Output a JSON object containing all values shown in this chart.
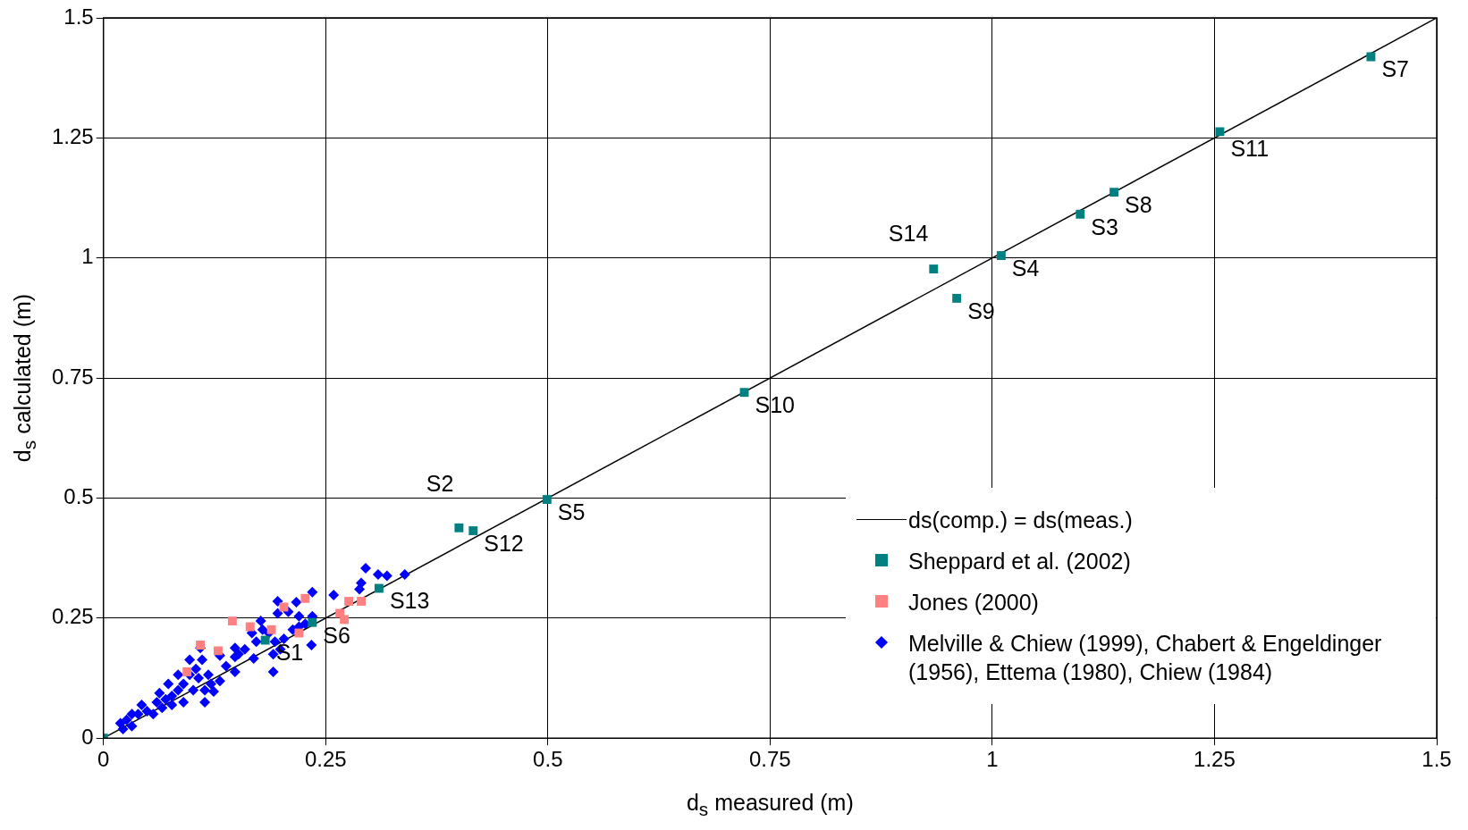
{
  "chart_data": {
    "type": "scatter",
    "xlabel": "d$_{s}$ measured (m)",
    "ylabel": "d$_{s}$ calculated (m)",
    "xlim": [
      0,
      1.5
    ],
    "ylim": [
      0,
      1.5
    ],
    "xticks": [
      0,
      0.25,
      0.5,
      0.75,
      1,
      1.25,
      1.5
    ],
    "yticks": [
      0,
      0.25,
      0.5,
      0.75,
      1,
      1.25,
      1.5
    ],
    "grid": true,
    "legend": "bottom right",
    "series": [
      {
        "name": "ds(comp.) = ds(meas.)",
        "type": "line",
        "color": "#000000",
        "marker": "none",
        "x": [
          0,
          1.5
        ],
        "values": [
          0,
          1.5
        ]
      },
      {
        "name": "Sheppard et al. (2002)",
        "color": "#008080",
        "marker": "square",
        "x": [
          0,
          0.182,
          0.235,
          0.31,
          0.4,
          0.416,
          0.499,
          0.721,
          0.934,
          0.96,
          1.01,
          1.099,
          1.137,
          1.256,
          1.426
        ],
        "values": [
          0,
          0.204,
          0.241,
          0.312,
          0.438,
          0.432,
          0.497,
          0.72,
          0.977,
          0.916,
          1.005,
          1.091,
          1.137,
          1.263,
          1.419
        ]
      },
      {
        "name": "Jones (2000)",
        "color": "#ff8080",
        "marker": "square",
        "x": [
          0.145,
          0.109,
          0.129,
          0.165,
          0.189,
          0.203,
          0.227,
          0.22,
          0.266,
          0.271,
          0.29,
          0.276,
          0.094
        ],
        "values": [
          0.244,
          0.194,
          0.182,
          0.232,
          0.226,
          0.273,
          0.291,
          0.219,
          0.26,
          0.247,
          0.285,
          0.285,
          0.138
        ]
      },
      {
        "name": "Melville & Chiew (1999), Chabert & Engeldinger (1956), Ettema (1980), Chiew (1984)",
        "color": "#0000ff",
        "marker": "diamond",
        "x": [
          0.295,
          0.309,
          0.319,
          0.339,
          0.29,
          0.288,
          0.259,
          0.235,
          0.217,
          0.196,
          0.196,
          0.208,
          0.22,
          0.235,
          0.22,
          0.234,
          0.177,
          0.167,
          0.186,
          0.193,
          0.199,
          0.191,
          0.191,
          0.169,
          0.159,
          0.148,
          0.148,
          0.148,
          0.131,
          0.131,
          0.124,
          0.114,
          0.109,
          0.111,
          0.104,
          0.097,
          0.09,
          0.084,
          0.073,
          0.07,
          0.066,
          0.06,
          0.049,
          0.043,
          0.032,
          0.026,
          0.019,
          0.022,
          0.032,
          0.039,
          0.077,
          0.09,
          0.101,
          0.107,
          0.118,
          0.097,
          0.172,
          0.179,
          0.213,
          0.227,
          0.203,
          0.152,
          0.138,
          0.121,
          0.084,
          0.056,
          0.063,
          0.077,
          0.114
        ],
        "values": [
          0.354,
          0.341,
          0.338,
          0.341,
          0.323,
          0.31,
          0.298,
          0.304,
          0.283,
          0.285,
          0.26,
          0.263,
          0.254,
          0.254,
          0.232,
          0.194,
          0.244,
          0.219,
          0.219,
          0.201,
          0.185,
          0.175,
          0.138,
          0.166,
          0.185,
          0.188,
          0.169,
          0.138,
          0.172,
          0.119,
          0.097,
          0.075,
          0.188,
          0.163,
          0.144,
          0.132,
          0.113,
          0.1,
          0.113,
          0.081,
          0.063,
          0.075,
          0.056,
          0.069,
          0.05,
          0.038,
          0.031,
          0.019,
          0.025,
          0.05,
          0.069,
          0.075,
          0.1,
          0.125,
          0.132,
          0.163,
          0.201,
          0.226,
          0.226,
          0.238,
          0.207,
          0.175,
          0.15,
          0.113,
          0.132,
          0.05,
          0.094,
          0.088,
          0.1
        ]
      }
    ],
    "annotations": [
      {
        "text": "S7",
        "x": 1.426,
        "y": 1.419
      },
      {
        "text": "S11",
        "x": 1.256,
        "y": 1.263
      },
      {
        "text": "S8",
        "x": 1.137,
        "y": 1.137
      },
      {
        "text": "S3",
        "x": 1.099,
        "y": 1.091
      },
      {
        "text": "S4",
        "x": 1.01,
        "y": 1.005
      },
      {
        "text": "S14",
        "x": 0.934,
        "y": 0.977
      },
      {
        "text": "S9",
        "x": 0.96,
        "y": 0.916
      },
      {
        "text": "S10",
        "x": 0.721,
        "y": 0.72
      },
      {
        "text": "S5",
        "x": 0.499,
        "y": 0.497
      },
      {
        "text": "S2",
        "x": 0.4,
        "y": 0.438
      },
      {
        "text": "S12",
        "x": 0.416,
        "y": 0.432
      },
      {
        "text": "S13",
        "x": 0.31,
        "y": 0.312
      },
      {
        "text": "S6",
        "x": 0.235,
        "y": 0.241
      },
      {
        "text": "S1",
        "x": 0.182,
        "y": 0.204
      }
    ]
  }
}
